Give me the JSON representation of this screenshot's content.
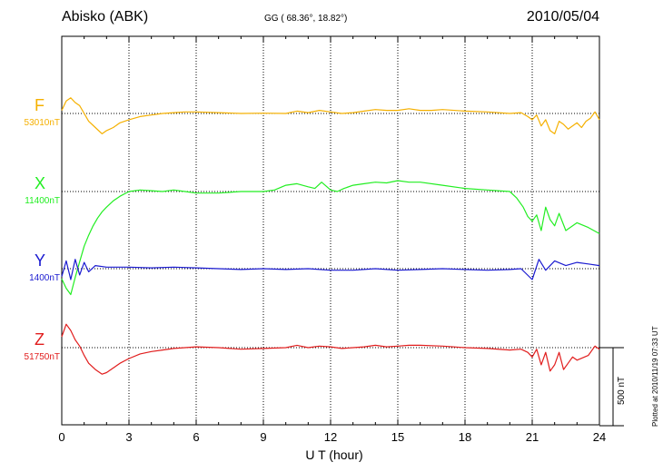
{
  "header": {
    "station": "Abisko (ABK)",
    "coords": "GG ( 68.36°,  18.82°)",
    "date": "2010/05/04"
  },
  "side": {
    "plotted": "Plotted at 2010/11/19 07:33 UT",
    "scale": "500 nT"
  },
  "chart_data": {
    "type": "line",
    "xlabel": "U T (hour)",
    "xlim": [
      0,
      24
    ],
    "xticks": [
      0,
      3,
      6,
      9,
      12,
      15,
      18,
      21,
      24
    ],
    "grid": true,
    "scale_bar_nT": 500,
    "series": [
      {
        "name": "F",
        "baseline_label": "53010nT",
        "color": "#f5b000",
        "baseline_nT": 53010,
        "x": [
          0,
          0.2,
          0.4,
          0.6,
          0.8,
          1.0,
          1.2,
          1.5,
          1.8,
          2.0,
          2.3,
          2.6,
          3.0,
          3.5,
          4.0,
          4.5,
          5.0,
          5.5,
          6.0,
          7,
          8,
          9,
          10,
          10.5,
          11,
          11.5,
          12,
          12.5,
          13,
          13.5,
          14,
          14.5,
          15,
          15.5,
          16,
          16.5,
          17,
          18,
          19,
          20,
          20.5,
          20.8,
          21.0,
          21.2,
          21.4,
          21.6,
          21.8,
          22.0,
          22.2,
          22.4,
          22.6,
          22.8,
          23.0,
          23.2,
          23.4,
          23.6,
          23.8,
          24.0
        ],
        "values": [
          53030,
          53090,
          53110,
          53080,
          53060,
          53010,
          52960,
          52920,
          52880,
          52900,
          52920,
          52950,
          52970,
          52990,
          53000,
          53010,
          53015,
          53020,
          53020,
          53015,
          53010,
          53012,
          53010,
          53025,
          53015,
          53030,
          53020,
          53010,
          53015,
          53025,
          53035,
          53030,
          53030,
          53040,
          53030,
          53030,
          53035,
          53025,
          53020,
          53010,
          53015,
          52990,
          52970,
          53000,
          52930,
          52970,
          52900,
          52880,
          52960,
          52940,
          52910,
          52930,
          52950,
          52920,
          52960,
          52980,
          53020,
          52970
        ]
      },
      {
        "name": "X",
        "baseline_label": "11400nT",
        "color": "#22ee22",
        "baseline_nT": 11400,
        "x": [
          0,
          0.2,
          0.4,
          0.6,
          0.8,
          1.0,
          1.2,
          1.4,
          1.6,
          1.8,
          2.0,
          2.3,
          2.6,
          3.0,
          3.5,
          4.0,
          4.5,
          5.0,
          5.5,
          6.0,
          7,
          8,
          9,
          9.5,
          10,
          10.5,
          11,
          11.3,
          11.6,
          12,
          12.3,
          12.6,
          13,
          13.5,
          14,
          14.5,
          15,
          15.5,
          16,
          17,
          18,
          19,
          20,
          20.3,
          20.6,
          20.8,
          21.0,
          21.2,
          21.4,
          21.6,
          21.8,
          22.0,
          22.2,
          22.5,
          23.0,
          23.5,
          24.0
        ],
        "values": [
          10840,
          10780,
          10740,
          10850,
          10950,
          11050,
          11120,
          11180,
          11230,
          11270,
          11300,
          11340,
          11370,
          11400,
          11410,
          11405,
          11400,
          11410,
          11400,
          11390,
          11390,
          11400,
          11400,
          11410,
          11440,
          11450,
          11430,
          11420,
          11460,
          11410,
          11400,
          11420,
          11440,
          11450,
          11460,
          11455,
          11470,
          11460,
          11460,
          11440,
          11420,
          11410,
          11400,
          11360,
          11300,
          11240,
          11210,
          11250,
          11150,
          11300,
          11220,
          11180,
          11260,
          11150,
          11200,
          11170,
          11130
        ]
      },
      {
        "name": "Y",
        "baseline_label": "1400nT",
        "color": "#1a1ad0",
        "baseline_nT": 1400,
        "x": [
          0,
          0.2,
          0.4,
          0.6,
          0.8,
          1.0,
          1.2,
          1.5,
          2,
          3,
          4,
          5,
          6,
          7,
          8,
          9,
          10,
          11,
          12,
          13,
          14,
          15,
          16,
          17,
          18,
          19,
          20,
          20.5,
          21.0,
          21.3,
          21.6,
          22.0,
          22.5,
          23.0,
          23.5,
          24.0
        ],
        "values": [
          1350,
          1450,
          1330,
          1460,
          1360,
          1440,
          1380,
          1420,
          1410,
          1410,
          1405,
          1410,
          1405,
          1400,
          1395,
          1400,
          1395,
          1400,
          1390,
          1390,
          1400,
          1390,
          1395,
          1400,
          1395,
          1390,
          1395,
          1400,
          1330,
          1460,
          1390,
          1450,
          1420,
          1440,
          1430,
          1420
        ]
      },
      {
        "name": "Z",
        "baseline_label": "51750nT",
        "color": "#e11d1d",
        "baseline_nT": 51750,
        "x": [
          0,
          0.2,
          0.4,
          0.6,
          0.8,
          1.0,
          1.2,
          1.5,
          1.8,
          2.0,
          2.3,
          2.6,
          3.0,
          3.5,
          4.0,
          4.5,
          5.0,
          5.5,
          6.0,
          7,
          8,
          9,
          10,
          10.5,
          11,
          11.5,
          12,
          12.5,
          13,
          13.5,
          14,
          14.5,
          15,
          15.5,
          16,
          17,
          18,
          19,
          20,
          20.5,
          20.8,
          21.0,
          21.2,
          21.4,
          21.6,
          21.8,
          22.0,
          22.2,
          22.4,
          22.6,
          22.8,
          23.0,
          23.5,
          23.8,
          24.0
        ],
        "values": [
          51820,
          51900,
          51860,
          51800,
          51760,
          51700,
          51650,
          51610,
          51580,
          51590,
          51620,
          51650,
          51680,
          51710,
          51725,
          51735,
          51745,
          51750,
          51755,
          51750,
          51740,
          51745,
          51750,
          51765,
          51750,
          51760,
          51755,
          51745,
          51750,
          51755,
          51765,
          51755,
          51760,
          51765,
          51765,
          51760,
          51750,
          51745,
          51735,
          51740,
          51720,
          51690,
          51740,
          51640,
          51720,
          51600,
          51640,
          51720,
          51610,
          51650,
          51690,
          51670,
          51700,
          51760,
          51740
        ]
      }
    ]
  }
}
